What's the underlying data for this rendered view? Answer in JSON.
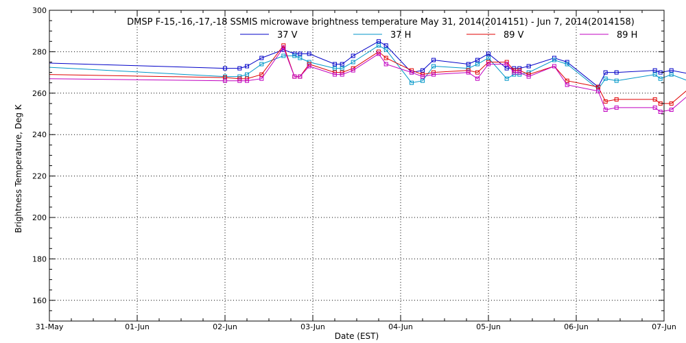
{
  "chart_data": {
    "type": "line",
    "title": "DMSP F-15,-16,-17,-18 SSMIS microwave brightness temperature May 31, 2014(2014151) - Jun  7, 2014(2014158)",
    "xlabel": "Date (EST)",
    "ylabel": "Brightness Temperature, Deg K",
    "xlim": [
      "2014-05-31 00:00",
      "2014-06-07 00:00"
    ],
    "ylim": [
      150,
      300
    ],
    "x_ticks": [
      "31-May",
      "01-Jun",
      "02-Jun",
      "03-Jun",
      "04-Jun",
      "05-Jun",
      "06-Jun",
      "07-Jun"
    ],
    "y_ticks": [
      160,
      180,
      200,
      220,
      240,
      260,
      280,
      300
    ],
    "grid": true,
    "legend_position": "top-center",
    "series": [
      {
        "name": "37 V",
        "color": "#0000c8",
        "points": [
          [
            "2014-05-31 00:00",
            274.5
          ],
          [
            "2014-06-02 00:00",
            272
          ],
          [
            "2014-06-02 04:00",
            272
          ],
          [
            "2014-06-02 06:00",
            273
          ],
          [
            "2014-06-02 10:00",
            277
          ],
          [
            "2014-06-02 16:00",
            281
          ],
          [
            "2014-06-02 19:00",
            279
          ],
          [
            "2014-06-02 20:30",
            279
          ],
          [
            "2014-06-02 23:00",
            279
          ],
          [
            "2014-06-03 06:00",
            274
          ],
          [
            "2014-06-03 08:00",
            274
          ],
          [
            "2014-06-03 11:00",
            278
          ],
          [
            "2014-06-03 18:00",
            285
          ],
          [
            "2014-06-03 20:00",
            283
          ],
          [
            "2014-06-04 03:00",
            270
          ],
          [
            "2014-06-04 06:00",
            271
          ],
          [
            "2014-06-04 09:00",
            276
          ],
          [
            "2014-06-04 18:30",
            274
          ],
          [
            "2014-06-04 21:00",
            276
          ],
          [
            "2014-06-05 00:00",
            279
          ],
          [
            "2014-06-05 05:00",
            272
          ],
          [
            "2014-06-05 07:00",
            272
          ],
          [
            "2014-06-05 08:30",
            272
          ],
          [
            "2014-06-05 11:00",
            273
          ],
          [
            "2014-06-05 18:00",
            277
          ],
          [
            "2014-06-05 21:30",
            275
          ],
          [
            "2014-06-06 06:00",
            263
          ],
          [
            "2014-06-06 08:00",
            270
          ],
          [
            "2014-06-06 11:00",
            270
          ],
          [
            "2014-06-06 21:30",
            271
          ],
          [
            "2014-06-06 23:00",
            270
          ],
          [
            "2014-06-07 02:00",
            271
          ],
          [
            "2014-06-07 08:00",
            269
          ]
        ]
      },
      {
        "name": "37 H",
        "color": "#0096c8",
        "points": [
          [
            "2014-05-31 00:00",
            272.5
          ],
          [
            "2014-06-02 00:00",
            268
          ],
          [
            "2014-06-02 04:00",
            268
          ],
          [
            "2014-06-02 06:00",
            269
          ],
          [
            "2014-06-02 10:00",
            274
          ],
          [
            "2014-06-02 16:00",
            278
          ],
          [
            "2014-06-02 19:00",
            278
          ],
          [
            "2014-06-02 20:30",
            277
          ],
          [
            "2014-06-02 23:00",
            275
          ],
          [
            "2014-06-03 06:00",
            272
          ],
          [
            "2014-06-03 08:00",
            272
          ],
          [
            "2014-06-03 11:00",
            275
          ],
          [
            "2014-06-03 18:00",
            283
          ],
          [
            "2014-06-03 20:00",
            281
          ],
          [
            "2014-06-04 03:00",
            265
          ],
          [
            "2014-06-04 06:00",
            266
          ],
          [
            "2014-06-04 09:00",
            273
          ],
          [
            "2014-06-04 18:30",
            272
          ],
          [
            "2014-06-04 21:00",
            274
          ],
          [
            "2014-06-05 00:00",
            277
          ],
          [
            "2014-06-05 05:00",
            267
          ],
          [
            "2014-06-05 07:00",
            269
          ],
          [
            "2014-06-05 08:30",
            269
          ],
          [
            "2014-06-05 11:00",
            270
          ],
          [
            "2014-06-05 18:00",
            276
          ],
          [
            "2014-06-05 21:30",
            274
          ],
          [
            "2014-06-06 06:00",
            262
          ],
          [
            "2014-06-06 08:00",
            267
          ],
          [
            "2014-06-06 11:00",
            266
          ],
          [
            "2014-06-06 21:30",
            269
          ],
          [
            "2014-06-06 23:00",
            267
          ],
          [
            "2014-06-07 02:00",
            269
          ],
          [
            "2014-06-07 08:00",
            265
          ]
        ]
      },
      {
        "name": "89 V",
        "color": "#e00000",
        "points": [
          [
            "2014-05-31 00:00",
            269
          ],
          [
            "2014-06-02 00:00",
            267.5
          ],
          [
            "2014-06-02 04:00",
            267
          ],
          [
            "2014-06-02 06:00",
            267
          ],
          [
            "2014-06-02 10:00",
            269
          ],
          [
            "2014-06-02 16:00",
            283
          ],
          [
            "2014-06-02 19:00",
            268
          ],
          [
            "2014-06-02 20:30",
            268
          ],
          [
            "2014-06-02 23:00",
            274
          ],
          [
            "2014-06-03 06:00",
            270
          ],
          [
            "2014-06-03 08:00",
            270
          ],
          [
            "2014-06-03 11:00",
            272
          ],
          [
            "2014-06-03 18:00",
            280
          ],
          [
            "2014-06-03 20:00",
            277
          ],
          [
            "2014-06-04 03:00",
            271
          ],
          [
            "2014-06-04 06:00",
            269
          ],
          [
            "2014-06-04 09:00",
            270
          ],
          [
            "2014-06-04 18:30",
            271
          ],
          [
            "2014-06-04 21:00",
            270
          ],
          [
            "2014-06-05 00:00",
            275
          ],
          [
            "2014-06-05 05:00",
            275
          ],
          [
            "2014-06-05 07:00",
            271
          ],
          [
            "2014-06-05 08:30",
            271
          ],
          [
            "2014-06-05 11:00",
            269
          ],
          [
            "2014-06-05 18:00",
            273
          ],
          [
            "2014-06-05 21:30",
            266
          ],
          [
            "2014-06-06 06:00",
            263
          ],
          [
            "2014-06-06 08:00",
            256
          ],
          [
            "2014-06-06 11:00",
            257
          ],
          [
            "2014-06-06 21:30",
            257
          ],
          [
            "2014-06-06 23:00",
            255
          ],
          [
            "2014-06-07 02:00",
            255
          ],
          [
            "2014-06-07 08:00",
            264
          ]
        ]
      },
      {
        "name": "89 H",
        "color": "#c000c0",
        "points": [
          [
            "2014-05-31 00:00",
            267
          ],
          [
            "2014-06-02 00:00",
            266
          ],
          [
            "2014-06-02 04:00",
            266
          ],
          [
            "2014-06-02 06:00",
            266
          ],
          [
            "2014-06-02 10:00",
            267
          ],
          [
            "2014-06-02 16:00",
            282
          ],
          [
            "2014-06-02 19:00",
            268
          ],
          [
            "2014-06-02 20:30",
            268
          ],
          [
            "2014-06-02 23:00",
            273
          ],
          [
            "2014-06-03 06:00",
            269
          ],
          [
            "2014-06-03 08:00",
            269
          ],
          [
            "2014-06-03 11:00",
            271
          ],
          [
            "2014-06-03 18:00",
            279
          ],
          [
            "2014-06-03 20:00",
            274
          ],
          [
            "2014-06-04 03:00",
            270
          ],
          [
            "2014-06-04 06:00",
            268
          ],
          [
            "2014-06-04 09:00",
            269
          ],
          [
            "2014-06-04 18:30",
            270
          ],
          [
            "2014-06-04 21:00",
            267
          ],
          [
            "2014-06-05 00:00",
            274
          ],
          [
            "2014-06-05 05:00",
            274
          ],
          [
            "2014-06-05 07:00",
            270
          ],
          [
            "2014-06-05 08:30",
            270
          ],
          [
            "2014-06-05 11:00",
            268
          ],
          [
            "2014-06-05 18:00",
            273
          ],
          [
            "2014-06-05 21:30",
            264
          ],
          [
            "2014-06-06 06:00",
            261
          ],
          [
            "2014-06-06 08:00",
            252
          ],
          [
            "2014-06-06 11:00",
            253
          ],
          [
            "2014-06-06 21:30",
            253
          ],
          [
            "2014-06-06 23:00",
            251
          ],
          [
            "2014-06-07 02:00",
            252
          ],
          [
            "2014-06-07 08:00",
            261
          ]
        ]
      }
    ]
  }
}
